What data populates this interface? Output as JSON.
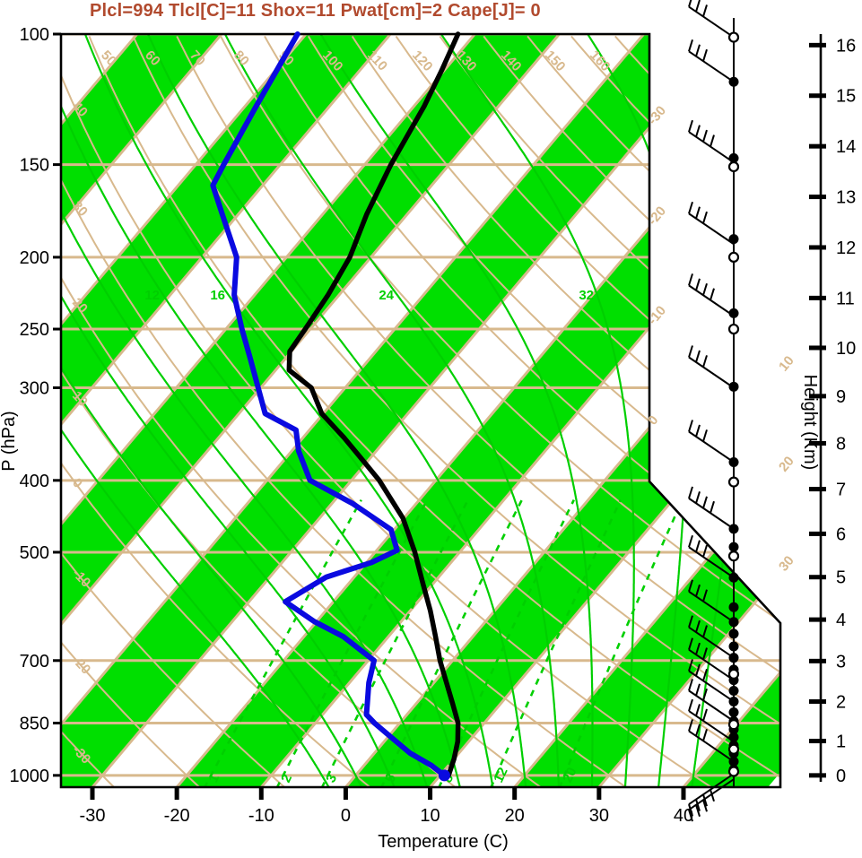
{
  "title": {
    "text": "Plcl=994 Tlcl[C]=11 Shox=11 Pwat[cm]=2 Cape[J]= 0"
  },
  "axes": {
    "pressure": {
      "label": "P (hPa)",
      "ticks": [
        100,
        150,
        200,
        250,
        300,
        400,
        500,
        700,
        850,
        1000
      ]
    },
    "temperature": {
      "label": "Temperature (C)",
      "ticks": [
        -30,
        -20,
        -10,
        0,
        10,
        20,
        30,
        40
      ]
    },
    "height": {
      "label": "Height (Km)",
      "ticks": [
        0,
        1,
        2,
        3,
        4,
        5,
        6,
        7,
        8,
        9,
        10,
        11,
        12,
        13,
        14,
        15,
        16
      ]
    }
  },
  "colors": {
    "shade_green": "#00df00",
    "line_green": "#00cf00",
    "tan": "#d8b98d",
    "temperature_line": "#000000",
    "dewpoint_line": "#0a0ae0",
    "title": "#b14a2e",
    "wind": "#000000"
  },
  "chart_data": {
    "type": "skewt_sounding",
    "pressure_range_hpa": [
      100,
      1040
    ],
    "temperature_axis_range_c": [
      -30,
      40
    ],
    "height_axis_km_range": [
      0,
      16
    ],
    "isotherms_c": {
      "start": -120,
      "end": 40,
      "step": 10
    },
    "isotherm_edge_labels_c": [
      -30,
      -20,
      -10,
      0,
      10,
      20,
      30
    ],
    "dry_adiabats_c": {
      "start": -30,
      "end": 170,
      "step": 10,
      "label_min": -30,
      "label_max": 160
    },
    "moist_adiabats_c": [
      -4,
      0,
      4,
      8,
      12,
      16,
      20,
      24,
      28,
      32,
      36,
      40
    ],
    "moist_adiabat_labels_c": [
      12,
      16,
      24,
      32
    ],
    "mixing_ratio_g_kg": [
      1,
      2,
      3,
      5,
      8,
      12,
      20
    ],
    "shaded_band_start_c": [
      -120,
      -100,
      -80,
      -60,
      -40,
      -20,
      0,
      20,
      40
    ],
    "temperature_profile_p_t": [
      [
        100,
        -62
      ],
      [
        112,
        -60.3
      ],
      [
        125,
        -58.8
      ],
      [
        150,
        -56.9
      ],
      [
        175,
        -54.8
      ],
      [
        200,
        -52.5
      ],
      [
        225,
        -51.3
      ],
      [
        250,
        -50.6
      ],
      [
        268,
        -50.2
      ],
      [
        284,
        -48.4
      ],
      [
        300,
        -44
      ],
      [
        325,
        -40.2
      ],
      [
        350,
        -35.2
      ],
      [
        375,
        -30.8
      ],
      [
        400,
        -26.7
      ],
      [
        450,
        -20.1
      ],
      [
        500,
        -15.3
      ],
      [
        550,
        -11.3
      ],
      [
        600,
        -7.6
      ],
      [
        650,
        -4.4
      ],
      [
        700,
        -1.5
      ],
      [
        750,
        1.5
      ],
      [
        800,
        4.3
      ],
      [
        850,
        6.9
      ],
      [
        900,
        8.7
      ],
      [
        950,
        10
      ],
      [
        1000,
        11
      ]
    ],
    "dewpoint_profile_p_t": [
      [
        100,
        -81
      ],
      [
        125,
        -78.7
      ],
      [
        150,
        -76.7
      ],
      [
        160,
        -75.9
      ],
      [
        175,
        -71.9
      ],
      [
        200,
        -65.9
      ],
      [
        225,
        -62.4
      ],
      [
        250,
        -58.1
      ],
      [
        275,
        -54
      ],
      [
        300,
        -50.3
      ],
      [
        325,
        -46.9
      ],
      [
        342,
        -41.6
      ],
      [
        365,
        -39.2
      ],
      [
        400,
        -34.9
      ],
      [
        430,
        -27.5
      ],
      [
        466,
        -20.4
      ],
      [
        497,
        -17.6
      ],
      [
        516,
        -19.4
      ],
      [
        540,
        -23.3
      ],
      [
        583,
        -25.7
      ],
      [
        620,
        -20.3
      ],
      [
        650,
        -15.3
      ],
      [
        700,
        -9.3
      ],
      [
        750,
        -7.7
      ],
      [
        800,
        -5.8
      ],
      [
        828,
        -4.8
      ],
      [
        850,
        -3
      ],
      [
        900,
        1.4
      ],
      [
        933,
        4.2
      ],
      [
        970,
        8
      ],
      [
        1000,
        10.5
      ]
    ],
    "wind": {
      "dots_filled_p": [
        116,
        147,
        189,
        238,
        299,
        378,
        465,
        492,
        541,
        593,
        621,
        644,
        670,
        694,
        720,
        744,
        769,
        795,
        822,
        845,
        867,
        888,
        911,
        934,
        958,
        982
      ],
      "dots_open_p": [
        101,
        151,
        200,
        250,
        402,
        506,
        730,
        854,
        922,
        988
      ],
      "barbs": [
        {
          "p": 101,
          "ticks": 3,
          "dir": "up"
        },
        {
          "p": 116,
          "ticks": 3,
          "dir": "up"
        },
        {
          "p": 149,
          "ticks": 4,
          "dir": "up"
        },
        {
          "p": 192,
          "ticks": 3,
          "dir": "up"
        },
        {
          "p": 240,
          "ticks": 4,
          "dir": "up"
        },
        {
          "p": 300,
          "ticks": 3,
          "dir": "up"
        },
        {
          "p": 378,
          "ticks": 3,
          "dir": "up"
        },
        {
          "p": 465,
          "ticks": 4,
          "dir": "up"
        },
        {
          "p": 541,
          "ticks": 3,
          "dir": "up"
        },
        {
          "p": 621,
          "ticks": 3,
          "dir": "up"
        },
        {
          "p": 694,
          "ticks": 3,
          "dir": "up"
        },
        {
          "p": 744,
          "ticks": 3,
          "dir": "up"
        },
        {
          "p": 795,
          "ticks": 3,
          "dir": "up"
        },
        {
          "p": 845,
          "ticks": 3,
          "dir": "up"
        },
        {
          "p": 900,
          "ticks": 3,
          "dir": "up"
        },
        {
          "p": 958,
          "ticks": 3,
          "dir": "up"
        },
        {
          "p": 995,
          "ticks": 4,
          "dir": "down"
        },
        {
          "p": 1012,
          "ticks": 3,
          "dir": "down"
        }
      ]
    }
  }
}
